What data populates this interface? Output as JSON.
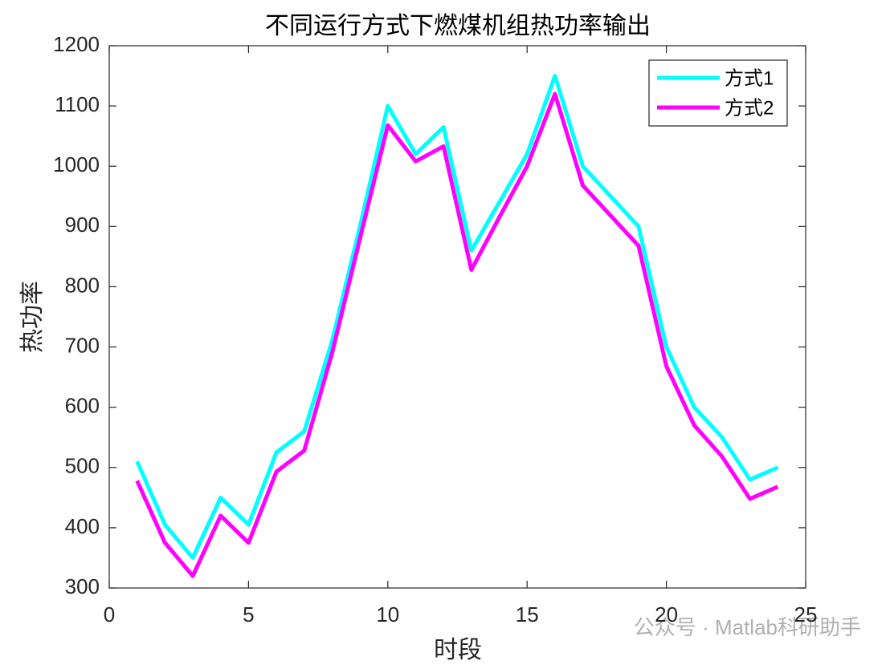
{
  "chart_data": {
    "type": "line",
    "title": "不同运行方式下燃煤机组热功率输出",
    "x_label": "时段",
    "y_label": "热功率",
    "annotation": "公众号 · Matlab科研助手",
    "x": [
      1,
      2,
      3,
      4,
      5,
      6,
      7,
      8,
      9,
      10,
      11,
      12,
      13,
      14,
      15,
      16,
      17,
      18,
      19,
      20,
      21,
      22,
      23,
      24
    ],
    "series": [
      {
        "name": "方式1",
        "color": "#00ffff",
        "values": [
          510,
          405,
          350,
          450,
          405,
          525,
          560,
          710,
          900,
          1100,
          1020,
          1065,
          860,
          940,
          1020,
          1150,
          1000,
          950,
          900,
          700,
          600,
          550,
          480,
          500
        ]
      },
      {
        "name": "方式2",
        "color": "#ff00ff",
        "values": [
          478,
          375,
          320,
          420,
          375,
          493,
          528,
          690,
          880,
          1068,
          1008,
          1033,
          828,
          915,
          1000,
          1120,
          968,
          918,
          868,
          668,
          570,
          518,
          448,
          468
        ]
      }
    ],
    "xlim": [
      0,
      25
    ],
    "xticks": [
      0,
      5,
      10,
      15,
      20,
      25
    ],
    "ylim": [
      300,
      1200
    ],
    "yticks": [
      300,
      400,
      500,
      600,
      700,
      800,
      900,
      1000,
      1100,
      1200
    ],
    "legend": "upper right"
  }
}
